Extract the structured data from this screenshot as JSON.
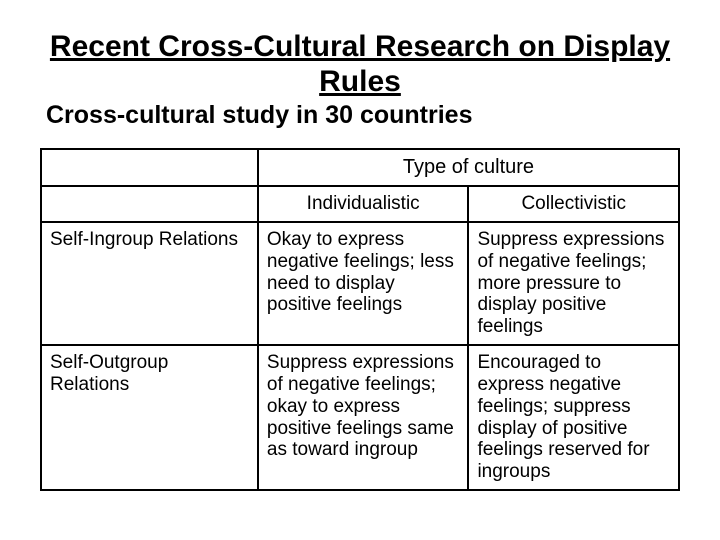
{
  "title": "Recent Cross-Cultural Research on Display Rules",
  "subtitle": "Cross-cultural study in 30 countries",
  "table": {
    "super_header": "Type of culture",
    "col_headers": [
      "Individualistic",
      "Collectivistic"
    ],
    "rows": [
      {
        "label": "Self-Ingroup Relations",
        "cells": [
          "Okay to express negative feelings; less need to display positive feelings",
          "Suppress expressions of negative feelings; more pressure to display positive feelings"
        ]
      },
      {
        "label": "Self-Outgroup Relations",
        "cells": [
          "Suppress expressions of negative feelings; okay to express positive feelings same as toward ingroup",
          "Encouraged to express negative feelings; suppress display of positive feelings reserved for ingroups"
        ]
      }
    ]
  },
  "style": {
    "background_color": "#ffffff",
    "text_color": "#000000",
    "border_color": "#000000",
    "font_family": "Arial",
    "title_fontsize": 30,
    "subtitle_fontsize": 25,
    "cell_fontsize": 19,
    "border_width": 2,
    "col_widths_pct": [
      34,
      33,
      33
    ]
  }
}
